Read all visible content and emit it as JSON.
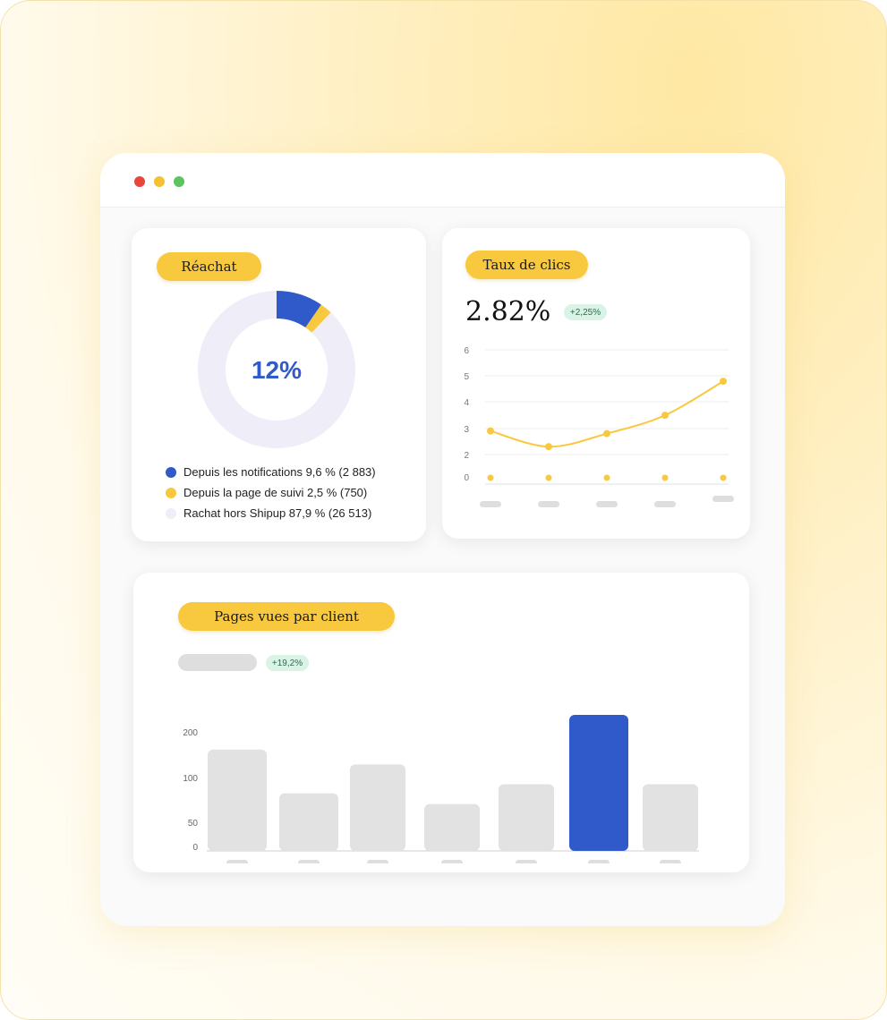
{
  "window": {
    "controls": [
      {
        "name": "close",
        "color": "#e8453c"
      },
      {
        "name": "minimize",
        "color": "#f5c033"
      },
      {
        "name": "maximize",
        "color": "#5cc45e"
      }
    ]
  },
  "colors": {
    "blue": "#3059c9",
    "yellow": "#f8c93e",
    "light": "#efeef8",
    "gray_bar": "#e2e2e2",
    "badge_bg": "#d9f3e6"
  },
  "reachat": {
    "title": "Réachat",
    "center_label": "12%",
    "legend": [
      {
        "label": "Depuis les notifications 9,6 % (2 883)",
        "color": "#3059c9"
      },
      {
        "label": "Depuis la page de suivi 2,5 % (750)",
        "color": "#f8c93e"
      },
      {
        "label": "Rachat hors Shipup 87,9 % (26 513)",
        "color": "#efeef8"
      }
    ]
  },
  "taux": {
    "title": "Taux de clics",
    "value": "2.82%",
    "badge": "+2,25%"
  },
  "pages": {
    "title": "Pages vues par client",
    "badge": "+19,2%"
  },
  "chart_data": [
    {
      "type": "pie",
      "title": "Réachat",
      "labels": [
        "Depuis les notifications",
        "Depuis la page de suivi",
        "Rachat hors Shipup"
      ],
      "values": [
        9.6,
        2.5,
        87.9
      ],
      "colors": [
        "#3059c9",
        "#f8c93e",
        "#efeef8"
      ],
      "donut": true
    },
    {
      "type": "line",
      "title": "Taux de clics",
      "x": [
        1,
        2,
        3,
        4,
        5
      ],
      "y": [
        2.9,
        2.3,
        2.8,
        3.5,
        4.8
      ],
      "baseline_points": [
        0,
        0,
        0,
        0,
        0
      ],
      "yticks": [
        "6",
        "5",
        "4",
        "3",
        "2",
        "0"
      ],
      "color": "#f8c93e",
      "grid": true
    },
    {
      "type": "bar",
      "title": "Pages vues par client",
      "values": [
        225,
        128,
        192,
        104,
        148,
        302,
        148
      ],
      "highlight_index": 5,
      "yticks": [
        "200",
        "100",
        "50",
        "0"
      ],
      "ylim": [
        0,
        310
      ],
      "colors": {
        "normal": "#e2e2e2",
        "highlight": "#3059c9"
      }
    }
  ]
}
